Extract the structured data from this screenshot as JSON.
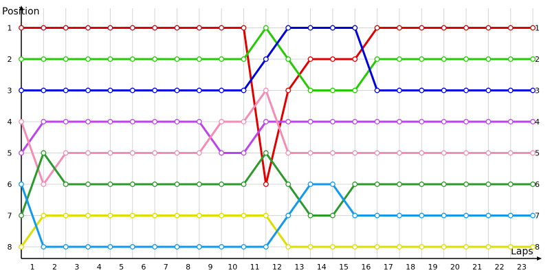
{
  "chart_data": {
    "type": "line",
    "title": "",
    "xlabel": "Laps",
    "ylabel": "Position",
    "grid": true,
    "legend": "none",
    "y_inverted": true,
    "xlim": [
      1,
      23
    ],
    "ylim": [
      1,
      8
    ],
    "x_tick_labels": [
      "1",
      "2",
      "3",
      "4",
      "5",
      "6",
      "7",
      "8",
      "9",
      "10",
      "11",
      "12",
      "13",
      "14",
      "15",
      "16",
      "17",
      "18",
      "19",
      "20",
      "21",
      "22",
      "23"
    ],
    "y_tick_labels": [
      "1",
      "2",
      "3",
      "4",
      "5",
      "6",
      "7",
      "8"
    ],
    "x": [
      0.5,
      1.5,
      2.5,
      3.5,
      4.5,
      5.5,
      6.5,
      7.5,
      8.5,
      9.5,
      10.5,
      11.5,
      12.5,
      13.5,
      14.5,
      15.5,
      16.5,
      17.5,
      18.5,
      19.5,
      20.5,
      21.5,
      22.5,
      23.5
    ],
    "series": [
      {
        "color": "#e00000",
        "values": [
          1,
          1,
          1,
          1,
          1,
          1,
          1,
          1,
          1,
          1,
          1,
          6,
          3,
          2,
          2,
          2,
          1,
          1,
          1,
          1,
          1,
          1,
          1,
          1
        ]
      },
      {
        "color": "#22cc00",
        "values": [
          2,
          2,
          2,
          2,
          2,
          2,
          2,
          2,
          2,
          2,
          2,
          1,
          2,
          3,
          3,
          3,
          2,
          2,
          2,
          2,
          2,
          2,
          2,
          2
        ]
      },
      {
        "color": "#0000dd",
        "values": [
          3,
          3,
          3,
          3,
          3,
          3,
          3,
          3,
          3,
          3,
          3,
          2,
          1,
          1,
          1,
          1,
          3,
          3,
          3,
          3,
          3,
          3,
          3,
          3
        ]
      },
      {
        "color": "#bb44ee",
        "values": [
          5,
          4,
          4,
          4,
          4,
          4,
          4,
          4,
          4,
          5,
          5,
          4,
          4,
          4,
          4,
          4,
          4,
          4,
          4,
          4,
          4,
          4,
          4,
          4
        ]
      },
      {
        "color": "#f58cb4",
        "values": [
          4,
          6,
          5,
          5,
          5,
          5,
          5,
          5,
          5,
          4,
          4,
          3,
          5,
          5,
          5,
          5,
          5,
          5,
          5,
          5,
          5,
          5,
          5,
          5
        ]
      },
      {
        "color": "#2a9a2a",
        "values": [
          7,
          5,
          6,
          6,
          6,
          6,
          6,
          6,
          6,
          6,
          6,
          5,
          6,
          7,
          7,
          6,
          6,
          6,
          6,
          6,
          6,
          6,
          6,
          6
        ]
      },
      {
        "color": "#dddd00",
        "values": [
          8,
          7,
          7,
          7,
          7,
          7,
          7,
          7,
          7,
          7,
          7,
          7,
          8,
          8,
          8,
          8,
          8,
          8,
          8,
          8,
          8,
          8,
          8,
          8
        ]
      },
      {
        "color": "#1199ee",
        "values": [
          6,
          8,
          8,
          8,
          8,
          8,
          8,
          8,
          8,
          8,
          8,
          8,
          7,
          6,
          6,
          7,
          7,
          7,
          7,
          7,
          7,
          7,
          7,
          7
        ]
      }
    ]
  }
}
